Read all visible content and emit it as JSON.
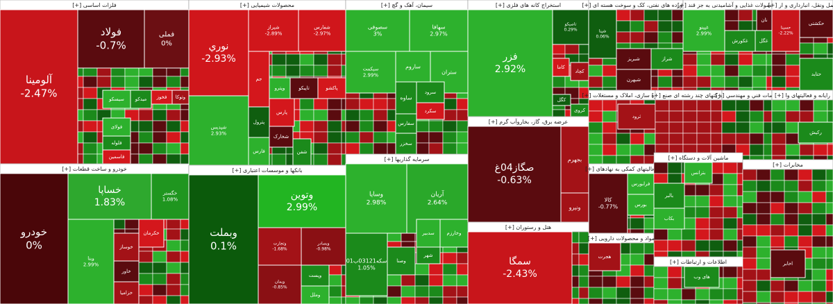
{
  "chart_data": {
    "type": "treemap",
    "sectors": [
      {
        "title": "فلزات اساسی [+]",
        "tiles": [
          {
            "name": "آلومینا",
            "change": "-2.47%",
            "color": "#c8151b"
          },
          {
            "name": "فولاد",
            "change": "-0.7%",
            "color": "#5a0b0f"
          },
          {
            "name": "فملی",
            "change": "0%",
            "color": "#6b0f13"
          },
          {
            "name": "سیسکو",
            "color": "#2db12d"
          },
          {
            "name": "میدکو",
            "color": "#1b8a1b"
          },
          {
            "name": "فولای",
            "color": "#2db12d"
          },
          {
            "name": "فخوز",
            "color": "#d4171c"
          },
          {
            "name": "وتوکا",
            "color": "#a31217"
          },
          {
            "name": "فلوله",
            "color": "#1b8a1b"
          },
          {
            "name": "فاسمین",
            "color": "#d4171c"
          }
        ]
      },
      {
        "title": "خودرو و ساخت قطعات [+]",
        "tiles": [
          {
            "name": "خودرو",
            "change": "0%",
            "color": "#4a0609"
          },
          {
            "name": "خساپا",
            "change": "1.83%",
            "color": "#2ea82e"
          },
          {
            "name": "خگستر",
            "change": "1.08%",
            "color": "#1f961f"
          },
          {
            "name": "وبنا",
            "change": "2.99%",
            "color": "#2db12d"
          },
          {
            "name": "خکرمان",
            "color": "#d4171c"
          },
          {
            "name": "خوساز",
            "color": "#a31217"
          },
          {
            "name": "خاور",
            "color": "#5a0b0f"
          },
          {
            "name": "خزامیا",
            "color": "#a31217"
          }
        ]
      },
      {
        "title": "محصولات شیمیایی [+]",
        "tiles": [
          {
            "name": "نوري",
            "change": "-2.93%",
            "color": "#d0161b"
          },
          {
            "name": "شیراز",
            "change": "-2.89%",
            "color": "#d0161b"
          },
          {
            "name": "شفارس",
            "change": "-2.97%",
            "color": "#d0161b"
          },
          {
            "name": "شپدیس",
            "change": "2.93%",
            "color": "#2db12d"
          },
          {
            "name": "جم",
            "color": "#d4171c"
          },
          {
            "name": "وپترو",
            "color": "#2db12d"
          },
          {
            "name": "تاپیکو",
            "color": "#5a0b0f"
          },
          {
            "name": "پاکشو",
            "color": "#d4171c"
          },
          {
            "name": "پارس",
            "color": "#d4171c"
          },
          {
            "name": "پترول",
            "color": "#0f5e0f"
          },
          {
            "name": "شخارک",
            "color": "#5a0b0f"
          },
          {
            "name": "فارس",
            "color": "#2db12d"
          },
          {
            "name": "شفن",
            "color": "#1b8a1b"
          }
        ]
      },
      {
        "title": "بانکها و موسسات اعتباری [+]",
        "tiles": [
          {
            "name": "وبملت",
            "change": "0.1%",
            "color": "#0b5a0b"
          },
          {
            "name": "وتوین",
            "change": "2.99%",
            "color": "#22b522"
          },
          {
            "name": "وتجارت",
            "change": "-1.68%",
            "color": "#a31217"
          },
          {
            "name": "وبصادر",
            "change": "-0.98%",
            "color": "#8a1014"
          },
          {
            "name": "وپست",
            "color": "#1b8a1b"
          },
          {
            "name": "وملل",
            "color": "#2db12d"
          },
          {
            "name": "وبمان",
            "change": "-0.85%",
            "color": "#8a1014"
          }
        ]
      },
      {
        "title": "سیمان، آهک و گچ [+]",
        "tiles": [
          {
            "name": "سصوفی",
            "change": "3%",
            "color": "#2db12d"
          },
          {
            "name": "سهافا",
            "change": "2.97%",
            "color": "#2db12d"
          },
          {
            "name": "سیکمت",
            "change": "2.99%",
            "color": "#2db12d"
          },
          {
            "name": "ساروم",
            "color": "#2db12d"
          },
          {
            "name": "ستران",
            "color": "#2db12d"
          },
          {
            "name": "ساوه",
            "color": "#1b8a1b"
          },
          {
            "name": "سرود",
            "color": "#1b8a1b"
          },
          {
            "name": "سفارس",
            "color": "#1b8a1b"
          },
          {
            "name": "سکرد",
            "color": "#d4171c"
          },
          {
            "name": "سخزر",
            "color": "#1b8a1b"
          }
        ]
      },
      {
        "title": "سرمایه گذاریها [+]",
        "tiles": [
          {
            "name": "وسایا",
            "change": "2.98%",
            "color": "#2db12d"
          },
          {
            "name": "آریان",
            "change": "2.64%",
            "color": "#2aa82a"
          },
          {
            "name": "سکه03121ب01",
            "change": "1.05%",
            "color": "#1b8a1b"
          },
          {
            "name": "وخارزم",
            "color": "#2db12d"
          },
          {
            "name": "سدبیر",
            "color": "#2db12d"
          },
          {
            "name": "وصنا",
            "color": "#1b8a1b"
          },
          {
            "name": "شهر",
            "color": "#1b8a1b"
          }
        ]
      },
      {
        "title": "استخراج کانه های فلزی [+]",
        "tiles": [
          {
            "name": "فزر",
            "change": "2.92%",
            "color": "#2db12d"
          },
          {
            "name": "تاصیکو",
            "change": "0.29%",
            "color": "#0f5e0f"
          },
          {
            "name": "کچاد",
            "color": "#a31217"
          },
          {
            "name": "کاما",
            "color": "#d4171c"
          },
          {
            "name": "کگل",
            "color": "#0f5e0f"
          },
          {
            "name": "کروی",
            "color": "#1b8a1b"
          }
        ]
      },
      {
        "title": "عرضه برق، گاز، بخاروآب گرم [+]",
        "tiles": [
          {
            "name": "صگاز04غ",
            "change": "-0.63%",
            "color": "#5a0b0f"
          },
          {
            "name": "بجهرم",
            "color": "#a31217"
          },
          {
            "name": "ونیرو",
            "color": "#a31217"
          }
        ]
      },
      {
        "title": "هتل و رستوران [+]",
        "tiles": [
          {
            "name": "سمگا",
            "change": "-2.43%",
            "color": "#c8151b"
          }
        ]
      },
      {
        "title": "فراورده های نفتی، کک و سوخت هسته ای [+]",
        "tiles": [
          {
            "name": "شپنا",
            "change": "0.06%",
            "color": "#0f5e0f"
          },
          {
            "name": "شبریز",
            "color": "#5a0b0f"
          },
          {
            "name": "شراز",
            "color": "#1b8a1b"
          },
          {
            "name": "شبهرن",
            "color": "#5a0b0f"
          }
        ]
      },
      {
        "title": "محصولات غذایی و آشامیدنی به جز قند [+]",
        "tiles": [
          {
            "name": "غپینو",
            "change": "2.99%",
            "color": "#2db12d"
          },
          {
            "name": "غکورش",
            "color": "#1b8a1b"
          },
          {
            "name": "غگل",
            "color": "#1b8a1b"
          },
          {
            "name": "نان",
            "color": "#5a0b0f"
          }
        ]
      },
      {
        "title": "حمل ونقل، انبارداری و ار [+]",
        "tiles": [
          {
            "name": "حسینا",
            "change": "-2.22%",
            "color": "#c8151b"
          },
          {
            "name": "حکشتی",
            "color": "#5a0b0f"
          },
          {
            "name": "حتاید",
            "color": "#1b8a1b"
          }
        ]
      },
      {
        "title": "انبوه سازی، املاک و مستغلات [+]",
        "tiles": [
          {
            "name": "ثرود",
            "color": "#a31217"
          }
        ]
      },
      {
        "title": "شرکتهای چند رشته ای صنع [+]",
        "tiles": []
      },
      {
        "title": "خدمات فني و مهندسي [+]",
        "tiles": []
      },
      {
        "title": "رایانه و فعالیتهای وا [+]",
        "tiles": [
          {
            "name": "رکیش",
            "color": "#1b8a1b"
          }
        ]
      },
      {
        "title": "فعالیتهای کمکی به نهادهای [+]",
        "tiles": [
          {
            "name": "کالا",
            "change": "-0.77%",
            "color": "#5a0b0f"
          },
          {
            "name": "فرابورس",
            "color": "#2db12d"
          },
          {
            "name": "بورس",
            "color": "#2db12d"
          }
        ]
      },
      {
        "title": "ماشین آلات و دستگاه [+]",
        "tiles": [
          {
            "name": "بترانس",
            "color": "#2db12d"
          },
          {
            "name": "بالبر",
            "color": "#1b8a1b"
          },
          {
            "name": "بکاب",
            "color": "#2db12d"
          }
        ]
      },
      {
        "title": "مواد و محصولات دارویی [+]",
        "tiles": [
          {
            "name": "هجرت",
            "color": "#a31217"
          }
        ]
      },
      {
        "title": "اطلاعات و ارتباطات [+]",
        "tiles": [
          {
            "name": "های وب",
            "color": "#1b8a1b"
          }
        ]
      },
      {
        "title": "مخابرات [+]",
        "tiles": [
          {
            "name": "اخابر",
            "color": "#5a0b0f"
          }
        ]
      }
    ]
  }
}
